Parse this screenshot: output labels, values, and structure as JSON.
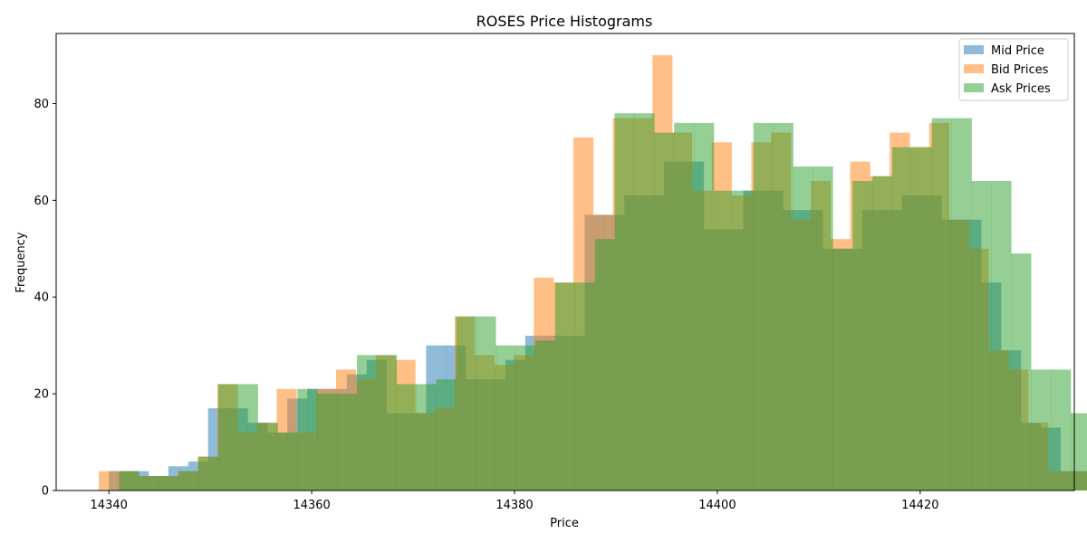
{
  "chart_data": {
    "type": "histogram",
    "title": "ROSES Price Histograms",
    "xlabel": "Price",
    "ylabel": "Frequency",
    "xlim": [
      14334.8,
      14435.2
    ],
    "ylim": [
      0,
      94.5
    ],
    "xticks": [
      14340,
      14360,
      14380,
      14400,
      14420
    ],
    "yticks": [
      0,
      20,
      40,
      60,
      80
    ],
    "grid": false,
    "legend_position": "top-right",
    "series": [
      {
        "name": "Mid Price",
        "color": "#1f77b4",
        "alpha": 0.5,
        "bin_start": 14340.0,
        "bin_width": 1.955,
        "values": [
          4,
          4,
          3,
          5,
          6,
          17,
          17,
          14,
          12,
          19,
          21,
          21,
          24,
          27,
          16,
          16,
          30,
          30,
          23,
          23,
          27,
          32,
          32,
          32,
          57,
          57,
          61,
          61,
          68,
          68,
          54,
          54,
          62,
          62,
          58,
          58,
          50,
          50,
          58,
          58,
          61,
          61,
          56,
          56,
          43,
          29,
          14,
          13,
          4,
          4
        ]
      },
      {
        "name": "Bid Prices",
        "color": "#ff7f0e",
        "alpha": 0.5,
        "bin_start": 14339.0,
        "bin_width": 1.95,
        "values": [
          4,
          4,
          3,
          3,
          4,
          7,
          22,
          12,
          14,
          21,
          12,
          21,
          25,
          23,
          28,
          27,
          16,
          17,
          36,
          28,
          26,
          28,
          44,
          43,
          73,
          57,
          77,
          77,
          90,
          74,
          62,
          72,
          61,
          72,
          74,
          56,
          64,
          52,
          68,
          65,
          74,
          71,
          76,
          56,
          50,
          29,
          25,
          14,
          4,
          4
        ]
      },
      {
        "name": "Ask Prices",
        "color": "#2ca02c",
        "alpha": 0.5,
        "bin_start": 14341.0,
        "bin_width": 1.955,
        "values": [
          4,
          3,
          3,
          4,
          7,
          22,
          22,
          14,
          12,
          21,
          20,
          20,
          28,
          28,
          22,
          22,
          23,
          36,
          36,
          30,
          30,
          31,
          43,
          43,
          52,
          78,
          78,
          74,
          76,
          76,
          62,
          62,
          76,
          76,
          67,
          67,
          50,
          64,
          65,
          71,
          71,
          77,
          77,
          64,
          64,
          49,
          25,
          25,
          16,
          16,
          4
        ]
      }
    ]
  }
}
